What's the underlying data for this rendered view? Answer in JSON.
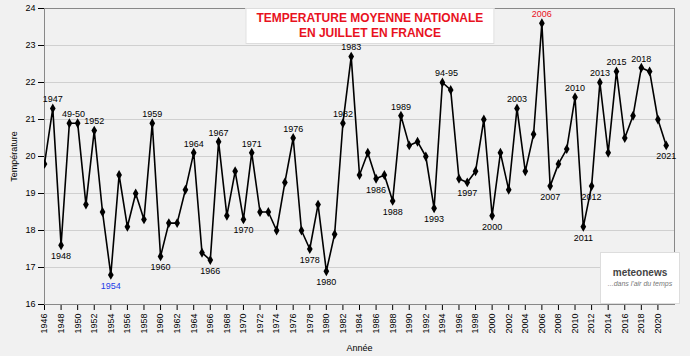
{
  "chart_data": {
    "type": "line",
    "title": "TEMPERATURE MOYENNE NATIONALE\nEN JUILLET EN FRANCE",
    "x_label": "Année",
    "y_label": "Température",
    "x": [
      1946,
      1947,
      1948,
      1949,
      1950,
      1951,
      1952,
      1953,
      1954,
      1955,
      1956,
      1957,
      1958,
      1959,
      1960,
      1961,
      1962,
      1963,
      1964,
      1965,
      1966,
      1967,
      1968,
      1969,
      1970,
      1971,
      1972,
      1973,
      1974,
      1975,
      1976,
      1977,
      1978,
      1979,
      1980,
      1981,
      1982,
      1983,
      1984,
      1985,
      1986,
      1987,
      1988,
      1989,
      1990,
      1991,
      1992,
      1993,
      1994,
      1995,
      1996,
      1997,
      1998,
      1999,
      2000,
      2001,
      2002,
      2003,
      2004,
      2005,
      2006,
      2007,
      2008,
      2009,
      2010,
      2011,
      2012,
      2013,
      2014,
      2015,
      2016,
      2017,
      2018,
      2019,
      2020,
      2021
    ],
    "values": [
      19.8,
      21.3,
      17.6,
      20.9,
      20.9,
      18.7,
      20.7,
      18.5,
      16.8,
      19.5,
      18.1,
      19.0,
      18.3,
      20.9,
      17.3,
      18.2,
      18.2,
      19.1,
      20.1,
      17.4,
      17.2,
      20.4,
      18.4,
      19.6,
      18.3,
      20.1,
      18.5,
      18.5,
      18.0,
      19.3,
      20.5,
      18.0,
      17.5,
      18.7,
      16.9,
      17.9,
      20.9,
      22.7,
      19.5,
      20.1,
      19.4,
      19.5,
      18.8,
      21.1,
      20.3,
      20.4,
      20.0,
      18.6,
      22.0,
      21.8,
      19.4,
      19.3,
      19.6,
      21.0,
      18.4,
      20.1,
      19.1,
      21.3,
      19.6,
      20.6,
      23.6,
      19.2,
      19.8,
      20.2,
      21.6,
      18.1,
      19.2,
      22.0,
      20.1,
      22.3,
      20.5,
      21.1,
      22.4,
      22.3,
      21.0,
      20.3
    ],
    "color": "#000000",
    "marker": "diamond",
    "xlim": [
      1946,
      2022
    ],
    "xticks": [
      1946,
      1948,
      1950,
      1952,
      1954,
      1956,
      1958,
      1960,
      1962,
      1964,
      1966,
      1968,
      1970,
      1972,
      1974,
      1976,
      1978,
      1980,
      1982,
      1984,
      1986,
      1988,
      1990,
      1992,
      1994,
      1996,
      1998,
      2000,
      2002,
      2004,
      2006,
      2008,
      2010,
      2012,
      2014,
      2016,
      2018,
      2020
    ],
    "ylim": [
      16,
      24
    ],
    "yticks": [
      16,
      17,
      18,
      19,
      20,
      21,
      22,
      23,
      24
    ],
    "grid": true,
    "annotations": [
      {
        "text": "1947",
        "x": 1947,
        "y": 21.3
      },
      {
        "text": "1948",
        "x": 1948,
        "y": 17.6
      },
      {
        "text": "49-50",
        "x": 1949.5,
        "y": 20.9
      },
      {
        "text": "1952",
        "x": 1952,
        "y": 20.7
      },
      {
        "text": "1954",
        "x": 1954,
        "y": 16.8,
        "color": "#1a3ce8"
      },
      {
        "text": "1959",
        "x": 1959,
        "y": 20.9
      },
      {
        "text": "1960",
        "x": 1960,
        "y": 17.3
      },
      {
        "text": "1964",
        "x": 1964,
        "y": 20.1
      },
      {
        "text": "1966",
        "x": 1966,
        "y": 17.2
      },
      {
        "text": "1967",
        "x": 1967,
        "y": 20.4
      },
      {
        "text": "1970",
        "x": 1970,
        "y": 18.3
      },
      {
        "text": "1971",
        "x": 1971,
        "y": 20.1
      },
      {
        "text": "1976",
        "x": 1976,
        "y": 20.5
      },
      {
        "text": "1978",
        "x": 1978,
        "y": 17.5
      },
      {
        "text": "1980",
        "x": 1980,
        "y": 16.9
      },
      {
        "text": "1982",
        "x": 1982,
        "y": 20.9
      },
      {
        "text": "1983",
        "x": 1983,
        "y": 22.7
      },
      {
        "text": "1986",
        "x": 1986,
        "y": 19.4
      },
      {
        "text": "1988",
        "x": 1988,
        "y": 18.8
      },
      {
        "text": "1989",
        "x": 1989,
        "y": 21.1
      },
      {
        "text": "1993",
        "x": 1993,
        "y": 18.6
      },
      {
        "text": "94-95",
        "x": 1994.5,
        "y": 22.0
      },
      {
        "text": "1997",
        "x": 1997,
        "y": 19.3
      },
      {
        "text": "2000",
        "x": 2000,
        "y": 18.4
      },
      {
        "text": "2003",
        "x": 2003,
        "y": 21.3
      },
      {
        "text": "2006",
        "x": 2006,
        "y": 23.6,
        "color": "#e8121e"
      },
      {
        "text": "2007",
        "x": 2007,
        "y": 19.2
      },
      {
        "text": "2010",
        "x": 2010,
        "y": 21.6
      },
      {
        "text": "2011",
        "x": 2011,
        "y": 18.1
      },
      {
        "text": "2012",
        "x": 2012,
        "y": 19.2
      },
      {
        "text": "2013",
        "x": 2013,
        "y": 22.0
      },
      {
        "text": "2015",
        "x": 2015,
        "y": 22.3
      },
      {
        "text": "2018",
        "x": 2018,
        "y": 22.4
      },
      {
        "text": "2021",
        "x": 2021,
        "y": 20.3
      }
    ],
    "source": "meteonews",
    "source_tagline": "...dans l'air du temps"
  }
}
